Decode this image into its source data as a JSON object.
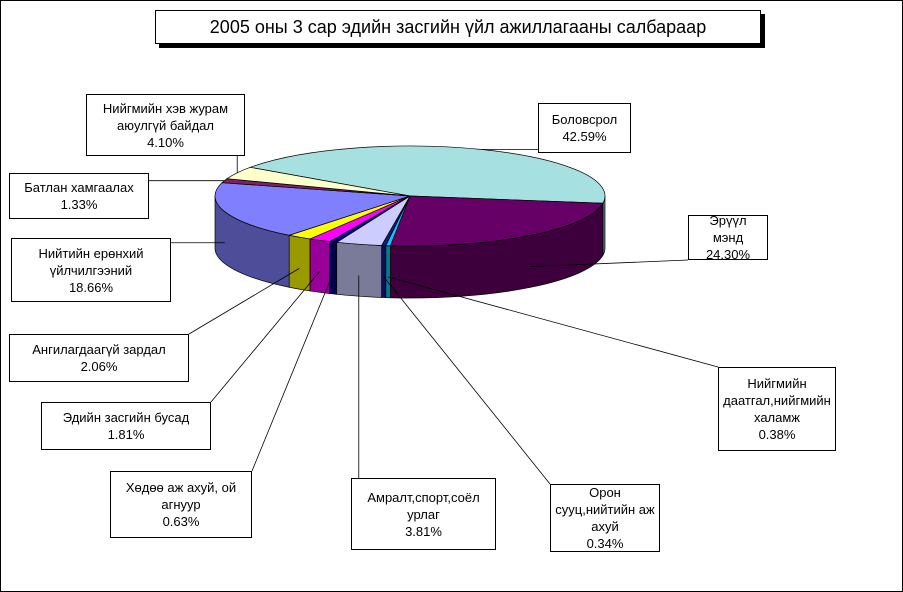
{
  "chart_data": {
    "type": "pie3d",
    "title": "2005 оны 3 сар эдийн засгийн үйл ажиллагааны салбараар",
    "categories": [
      "Боловсрол",
      "Эрүүл мэнд",
      "Нийгмийн даатгал,нийгмийн халамж",
      "Орон сууц,нийтийн аж ахуй",
      "Амралт,спорт,соёл урлаг",
      "Хөдөө аж ахуй, ой агнуур",
      "Эдийн засгийн бусад",
      "Ангилагдаагүй зардал",
      "Нийтийн ерөнхий үйлчилгээний",
      "Батлан хамгаалах",
      "Нийгмийн хэв журам аюулгүй байдал"
    ],
    "values": [
      42.59,
      24.3,
      0.38,
      0.34,
      3.81,
      0.63,
      1.81,
      2.06,
      18.66,
      1.33,
      4.1
    ],
    "value_labels": [
      "42.59%",
      "24.30%",
      "0.38%",
      "0.34%",
      "3.81%",
      "0.63%",
      "1.81%",
      "2.06%",
      "18.66%",
      "1.33%",
      "4.10%"
    ],
    "colors": [
      "#a6e0e0",
      "#660066",
      "#00ccff",
      "#1a1a80",
      "#ccccff",
      "#000080",
      "#ff00ff",
      "#ffff00",
      "#8080ff",
      "#802060",
      "#ffffcc"
    ]
  }
}
